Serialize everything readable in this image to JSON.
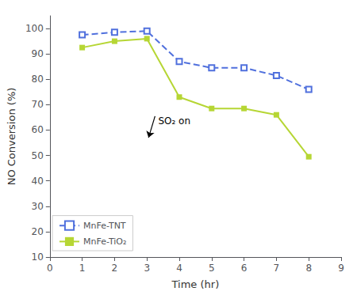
{
  "chart_data": {
    "type": "line",
    "xlabel": "Time (hr)",
    "ylabel": "NO Conversion (%)",
    "series": [
      {
        "name": "MnFe-TNT",
        "x": [
          1,
          2,
          3,
          4,
          5,
          6,
          7,
          8
        ],
        "values": [
          97.5,
          98.5,
          99.0,
          87.0,
          84.5,
          84.5,
          81.5,
          76.0
        ],
        "line_style": "dashed",
        "marker": "open square"
      },
      {
        "name": "MnFe-TiO₂",
        "x": [
          1,
          2,
          3,
          4,
          5,
          6,
          7,
          8
        ],
        "values": [
          92.5,
          95.0,
          96.0,
          73.0,
          68.5,
          68.5,
          66.0,
          49.5
        ],
        "line_style": "solid",
        "marker": "square"
      }
    ],
    "xlim": [
      0,
      9
    ],
    "ylim": [
      10,
      105
    ],
    "xticks": [
      0,
      1,
      2,
      3,
      4,
      5,
      6,
      7,
      8,
      9
    ],
    "yticks": [
      10,
      20,
      30,
      40,
      50,
      60,
      70,
      80,
      90,
      100
    ],
    "grid": false,
    "legend": "lower left",
    "annotations": [
      {
        "text": "SO₂ on",
        "x": 3.05,
        "y": 57.0,
        "text_x": 3.25,
        "text_y": 65.5
      }
    ]
  }
}
